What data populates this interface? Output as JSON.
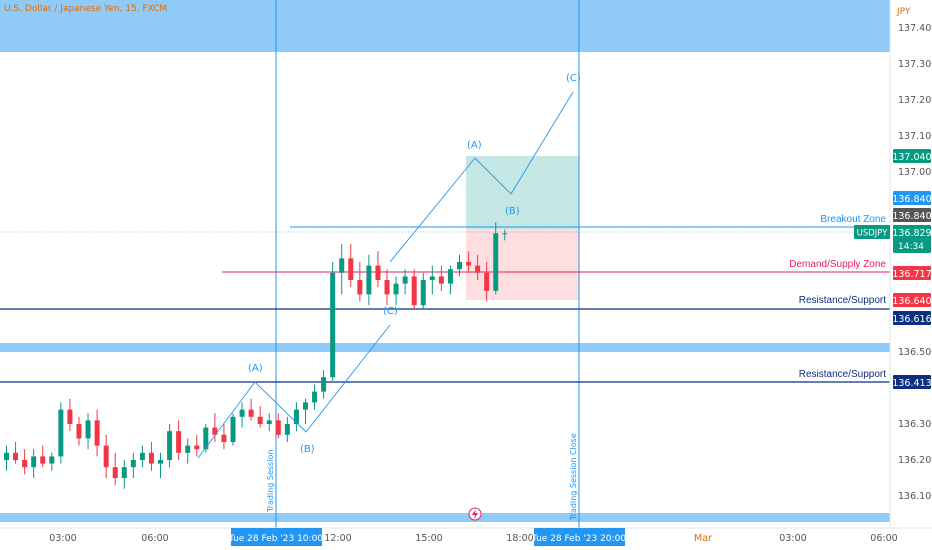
{
  "symbol": {
    "title": "U.S. Dollar / Japanese Yen, 15, FXCM",
    "currency": "JPY",
    "ticker": "USDJPY",
    "price": "136.829",
    "countdown": "14:34"
  },
  "price_axis": {
    "ticks": [
      "137.400",
      "137.300",
      "137.200",
      "137.100",
      "137.000",
      "136.500",
      "136.300",
      "136.200",
      "136.100"
    ],
    "tags": [
      {
        "value": "137.040",
        "color": "#089981"
      },
      {
        "value": "136.840",
        "color": "#2196f3"
      },
      {
        "value": "136.840",
        "color": "#555555"
      },
      {
        "value": "136.717",
        "color": "#f23645"
      },
      {
        "value": "136.640",
        "color": "#f23645"
      },
      {
        "value": "136.616",
        "color": "#0c2f7f"
      },
      {
        "value": "136.413",
        "color": "#0c2f7f"
      }
    ]
  },
  "time_axis": {
    "ticks": [
      "03:00",
      "06:00",
      "12:00",
      "15:00",
      "18:00",
      "Mar",
      "03:00",
      "06:00"
    ],
    "highlight_left": "Tue 28 Feb '23  10:00",
    "highlight_right": "Tue 28 Feb '23  20:00"
  },
  "annotations": {
    "breakout": "Breakout Zone",
    "demand_supply": "Demand/Supply Zone",
    "res_sup_1": "Resistance/Support",
    "res_sup_2": "Resistance/Support",
    "session_open": "Trading Session",
    "session_close": "Trading Session Close",
    "waves": {
      "A1": "(A)",
      "B1": "(B)",
      "C1": "(C)",
      "A2": "(A)",
      "B2": "(B)",
      "C2": "(C)"
    }
  },
  "colors": {
    "up": "#089981",
    "down": "#f23645",
    "zone_blue": "#90caf9",
    "breakout_line": "#2196f3",
    "demand_line": "#e91e63",
    "support_line": "#0c2f7f",
    "wave_line": "#2196f3",
    "long_tp": "#b2dfdb",
    "long_sl": "#ffcdd2"
  },
  "chart_data": {
    "type": "candlestick",
    "title": "U.S. Dollar / Japanese Yen, 15, FXCM",
    "y_unit": "JPY",
    "ylim": [
      136.05,
      137.45
    ],
    "candles": [
      [
        136.2,
        136.24,
        136.17,
        136.22
      ],
      [
        136.22,
        136.25,
        136.19,
        136.2
      ],
      [
        136.2,
        136.23,
        136.16,
        136.18
      ],
      [
        136.18,
        136.23,
        136.15,
        136.21
      ],
      [
        136.21,
        136.24,
        136.18,
        136.19
      ],
      [
        136.19,
        136.22,
        136.17,
        136.21
      ],
      [
        136.21,
        136.36,
        136.19,
        136.34
      ],
      [
        136.34,
        136.37,
        136.28,
        136.3
      ],
      [
        136.3,
        136.32,
        136.24,
        136.26
      ],
      [
        136.26,
        136.33,
        136.23,
        136.31
      ],
      [
        136.31,
        136.34,
        136.21,
        136.24
      ],
      [
        136.24,
        136.27,
        136.15,
        136.18
      ],
      [
        136.18,
        136.22,
        136.13,
        136.15
      ],
      [
        136.15,
        136.2,
        136.12,
        136.18
      ],
      [
        136.18,
        136.22,
        136.15,
        136.2
      ],
      [
        136.2,
        136.24,
        136.18,
        136.22
      ],
      [
        136.22,
        136.25,
        136.17,
        136.19
      ],
      [
        136.19,
        136.22,
        136.15,
        136.2
      ],
      [
        136.2,
        136.3,
        136.18,
        136.28
      ],
      [
        136.28,
        136.31,
        136.2,
        136.22
      ],
      [
        136.22,
        136.26,
        136.19,
        136.24
      ],
      [
        136.24,
        136.27,
        136.21,
        136.23
      ],
      [
        136.23,
        136.3,
        136.22,
        136.29
      ],
      [
        136.29,
        136.33,
        136.25,
        136.27
      ],
      [
        136.27,
        136.3,
        136.23,
        136.25
      ],
      [
        136.25,
        136.33,
        136.24,
        136.32
      ],
      [
        136.32,
        136.36,
        136.29,
        136.34
      ],
      [
        136.34,
        136.37,
        136.31,
        136.32
      ],
      [
        136.32,
        136.35,
        136.29,
        136.3
      ],
      [
        136.3,
        136.33,
        136.28,
        136.31
      ],
      [
        136.31,
        136.33,
        136.26,
        136.27
      ],
      [
        136.27,
        136.32,
        136.25,
        136.3
      ],
      [
        136.3,
        136.36,
        136.28,
        136.34
      ],
      [
        136.34,
        136.37,
        136.3,
        136.36
      ],
      [
        136.36,
        136.41,
        136.34,
        136.39
      ],
      [
        136.39,
        136.45,
        136.37,
        136.43
      ],
      [
        136.43,
        136.75,
        136.42,
        136.72
      ],
      [
        136.72,
        136.8,
        136.66,
        136.76
      ],
      [
        136.76,
        136.8,
        136.68,
        136.7
      ],
      [
        136.7,
        136.75,
        136.64,
        136.66
      ],
      [
        136.66,
        136.77,
        136.63,
        136.74
      ],
      [
        136.74,
        136.78,
        136.68,
        136.7
      ],
      [
        136.7,
        136.73,
        136.63,
        136.66
      ],
      [
        136.66,
        136.71,
        136.63,
        136.69
      ],
      [
        136.69,
        136.73,
        136.66,
        136.71
      ],
      [
        136.71,
        136.73,
        136.62,
        136.63
      ],
      [
        136.63,
        136.72,
        136.62,
        136.7
      ],
      [
        136.7,
        136.74,
        136.66,
        136.71
      ],
      [
        136.71,
        136.74,
        136.67,
        136.69
      ],
      [
        136.69,
        136.74,
        136.66,
        136.73
      ],
      [
        136.73,
        136.77,
        136.71,
        136.75
      ],
      [
        136.75,
        136.78,
        136.72,
        136.74
      ],
      [
        136.74,
        136.77,
        136.7,
        136.72
      ],
      [
        136.72,
        136.75,
        136.64,
        136.67
      ],
      [
        136.67,
        136.86,
        136.66,
        136.83
      ],
      [
        136.83,
        136.84,
        136.81,
        136.83
      ]
    ]
  }
}
